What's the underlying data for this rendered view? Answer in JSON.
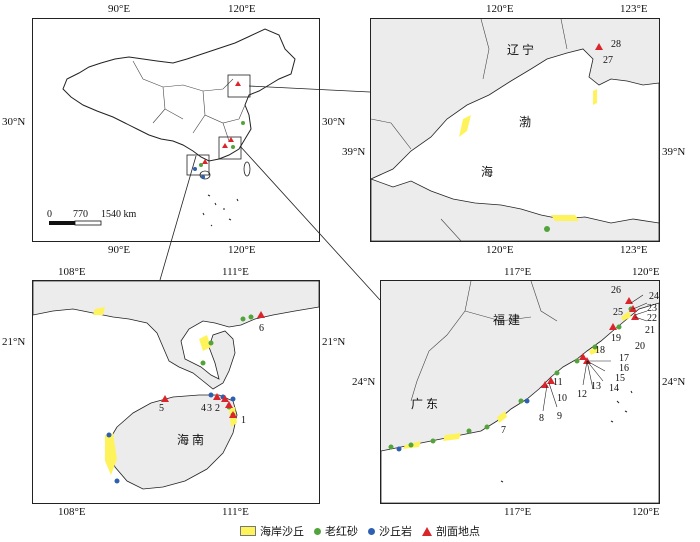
{
  "colors": {
    "dune": "#fff35b",
    "red_sand": "#52a33b",
    "dune_rock": "#2f5fb0",
    "site": "#d9262c",
    "land": "#ececec",
    "sea": "#ffffff",
    "line": "#222222"
  },
  "panels": {
    "china": {
      "ticks": {
        "top": [
          "90°E",
          "120°E"
        ],
        "bottom": [
          "90°E",
          "120°E"
        ],
        "left": [
          "30°N"
        ],
        "right": [
          "30°N"
        ]
      },
      "scalebar": {
        "labels": [
          "0",
          "770",
          "1540 km"
        ]
      }
    },
    "liaoning": {
      "ticks": {
        "top": [
          "120°E",
          "123°E"
        ],
        "bottom": [
          "120°E",
          "123°E"
        ],
        "left": [
          "39°N"
        ],
        "right": [
          "39°N"
        ]
      },
      "labels": {
        "province": "辽 宁",
        "sea_upper": "渤",
        "sea_lower": "海"
      },
      "site_numbers": [
        "28",
        "27"
      ]
    },
    "hainan": {
      "ticks": {
        "top": [
          "108°E",
          "111°E"
        ],
        "bottom": [
          "108°E",
          "111°E"
        ],
        "left": [
          "21°N"
        ],
        "right": [
          "21°N"
        ]
      },
      "labels": {
        "island": "海 南"
      },
      "site_numbers": [
        "6",
        "5",
        "4",
        "3",
        "2",
        "1"
      ]
    },
    "fujian": {
      "ticks": {
        "top": [
          "117°E",
          "120°E"
        ],
        "bottom": [
          "117°E",
          "120°E"
        ],
        "left": [
          "24°N"
        ],
        "right": [
          "24°N"
        ]
      },
      "labels": {
        "fujian": "福 建",
        "guangdong": "广 东"
      },
      "site_numbers": [
        "26",
        "24",
        "23",
        "25",
        "22",
        "21",
        "20",
        "19",
        "18",
        "17",
        "16",
        "15",
        "14",
        "13",
        "12",
        "11",
        "10",
        "9",
        "8",
        "7"
      ]
    }
  },
  "legend": [
    {
      "label": "海岸沙丘",
      "symbol": "rect",
      "color_key": "dune"
    },
    {
      "label": "老红砂",
      "symbol": "dot",
      "color_key": "red_sand"
    },
    {
      "label": "沙丘岩",
      "symbol": "dot",
      "color_key": "dune_rock"
    },
    {
      "label": "剖面地点",
      "symbol": "triangle",
      "color_key": "site"
    }
  ]
}
